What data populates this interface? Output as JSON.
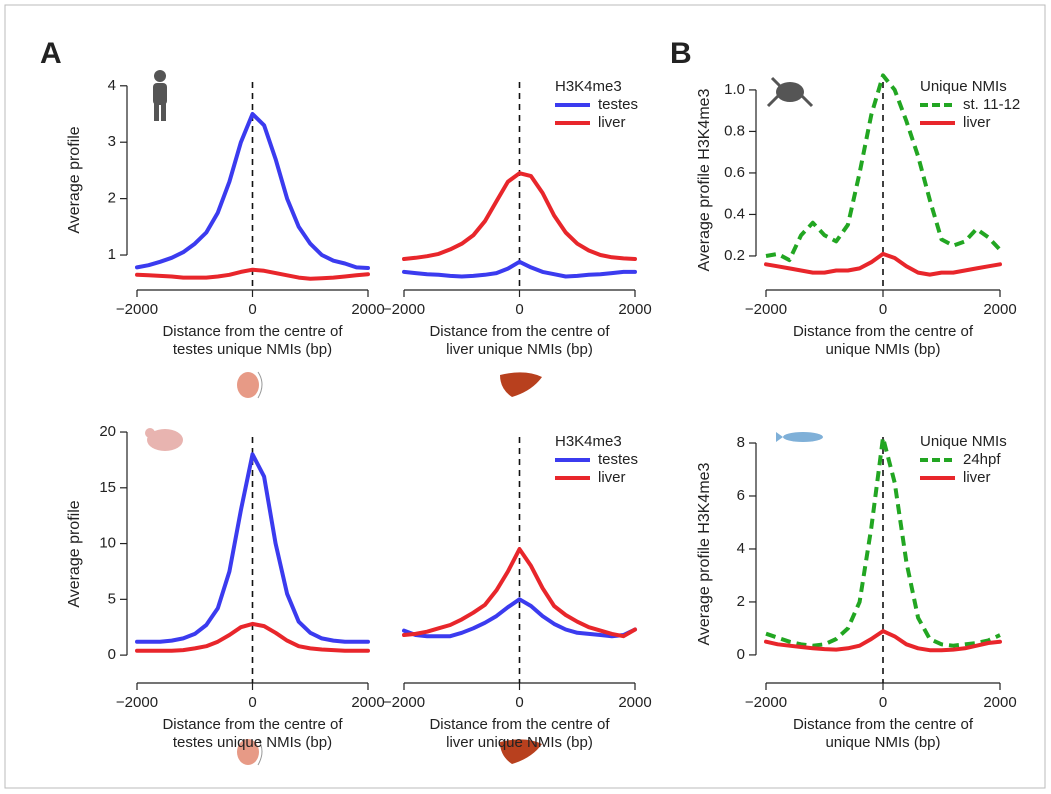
{
  "panel_labels": [
    "A",
    "B"
  ],
  "chart_data": [
    {
      "type": "line",
      "ylabel": "Average profile",
      "xlabel": [
        "Distance from the centre of",
        "testes unique NMIs (bp)"
      ],
      "x": [
        -2000,
        -1800,
        -1600,
        -1400,
        -1200,
        -1000,
        -800,
        -600,
        -400,
        -200,
        0,
        200,
        400,
        600,
        800,
        1000,
        1200,
        1400,
        1600,
        1800,
        2000
      ],
      "xlim": [
        -2000,
        2000
      ],
      "xticks": [
        {
          "value": -2000,
          "label": "−2000"
        },
        0,
        2000
      ],
      "ylim": [
        0.38,
        4.28
      ],
      "yticks": [
        1,
        2,
        3,
        4
      ],
      "vline": 0,
      "series": [
        {
          "color": "#3b3bef",
          "values": [
            0.78,
            0.82,
            0.88,
            0.95,
            1.05,
            1.2,
            1.4,
            1.75,
            2.3,
            3.0,
            3.5,
            3.3,
            2.7,
            2.0,
            1.5,
            1.2,
            1.0,
            0.9,
            0.85,
            0.78,
            0.77
          ]
        },
        {
          "color": "#e8262b",
          "values": [
            0.65,
            0.64,
            0.63,
            0.62,
            0.6,
            0.6,
            0.6,
            0.62,
            0.65,
            0.7,
            0.74,
            0.72,
            0.68,
            0.64,
            0.6,
            0.58,
            0.59,
            0.6,
            0.62,
            0.64,
            0.66
          ]
        }
      ]
    },
    {
      "type": "line",
      "xlabel": [
        "Distance from the centre of",
        "liver unique NMIs (bp)"
      ],
      "legend_title": "H3K4me3",
      "x": [
        -2000,
        -1800,
        -1600,
        -1400,
        -1200,
        -1000,
        -800,
        -600,
        -400,
        -200,
        0,
        200,
        400,
        600,
        800,
        1000,
        1200,
        1400,
        1600,
        1800,
        2000
      ],
      "xlim": [
        -2000,
        2000
      ],
      "xticks": [
        {
          "value": -2000,
          "label": "−2000"
        },
        0,
        2000
      ],
      "ylim": [
        0.38,
        4.28
      ],
      "vline": 0,
      "series": [
        {
          "name": "testes",
          "color": "#3b3bef",
          "values": [
            0.7,
            0.68,
            0.66,
            0.65,
            0.63,
            0.62,
            0.63,
            0.65,
            0.68,
            0.76,
            0.88,
            0.78,
            0.7,
            0.66,
            0.62,
            0.63,
            0.65,
            0.66,
            0.68,
            0.7,
            0.7
          ]
        },
        {
          "name": "liver",
          "color": "#e8262b",
          "values": [
            0.93,
            0.95,
            0.98,
            1.02,
            1.1,
            1.2,
            1.35,
            1.6,
            1.95,
            2.3,
            2.45,
            2.4,
            2.1,
            1.7,
            1.4,
            1.2,
            1.08,
            1.0,
            0.96,
            0.94,
            0.93
          ]
        }
      ]
    },
    {
      "type": "line",
      "ylabel": "Average profile H3K4me3",
      "xlabel": [
        "Distance from the centre of",
        "unique NMIs (bp)"
      ],
      "legend_title": "Unique NMIs",
      "x": [
        -2000,
        -1800,
        -1600,
        -1400,
        -1200,
        -1000,
        -800,
        -600,
        -400,
        -200,
        0,
        200,
        400,
        600,
        800,
        1000,
        1200,
        1400,
        1600,
        1800,
        2000
      ],
      "xlim": [
        -2000,
        2000
      ],
      "xticks": [
        {
          "value": -2000,
          "label": "−2000"
        },
        0,
        2000
      ],
      "ylim": [
        0.036,
        1.096
      ],
      "yticks": [
        0.2,
        0.4,
        0.6,
        0.8,
        {
          "value": 1,
          "label": "1.0"
        }
      ],
      "vline": 0,
      "series": [
        {
          "name": "st. 11-12",
          "color": "#22a622",
          "style": "dashed",
          "values": [
            0.2,
            0.21,
            0.18,
            0.3,
            0.36,
            0.3,
            0.27,
            0.35,
            0.6,
            0.88,
            1.07,
            1.0,
            0.85,
            0.68,
            0.47,
            0.28,
            0.25,
            0.27,
            0.33,
            0.29,
            0.23
          ]
        },
        {
          "name": "liver",
          "color": "#e8262b",
          "values": [
            0.16,
            0.15,
            0.14,
            0.13,
            0.12,
            0.12,
            0.13,
            0.13,
            0.14,
            0.17,
            0.21,
            0.19,
            0.15,
            0.12,
            0.11,
            0.12,
            0.12,
            0.13,
            0.14,
            0.15,
            0.16
          ]
        }
      ]
    },
    {
      "type": "line",
      "ylabel": "Average profile",
      "xlabel": [
        "Distance from the centre of",
        "testes unique NMIs (bp)"
      ],
      "x": [
        -2000,
        -1800,
        -1600,
        -1400,
        -1200,
        -1000,
        -800,
        -600,
        -400,
        -200,
        0,
        200,
        400,
        600,
        800,
        1000,
        1200,
        1400,
        1600,
        1800,
        2000
      ],
      "xlim": [
        -2000,
        2000
      ],
      "xticks": [
        {
          "value": -2000,
          "label": "−2000"
        },
        0,
        2000
      ],
      "ylim": [
        -2.5,
        20.63
      ],
      "yticks": [
        0,
        5,
        10,
        15,
        20
      ],
      "vline": 0,
      "series": [
        {
          "color": "#3b3bef",
          "values": [
            1.2,
            1.2,
            1.2,
            1.3,
            1.5,
            1.9,
            2.7,
            4.2,
            7.5,
            13,
            18,
            16,
            10,
            5.5,
            3.0,
            2.0,
            1.5,
            1.3,
            1.2,
            1.2,
            1.2
          ]
        },
        {
          "color": "#e8262b",
          "values": [
            0.4,
            0.4,
            0.4,
            0.4,
            0.45,
            0.6,
            0.8,
            1.2,
            1.8,
            2.5,
            2.8,
            2.6,
            2.0,
            1.3,
            0.8,
            0.6,
            0.5,
            0.45,
            0.4,
            0.4,
            0.4
          ]
        }
      ]
    },
    {
      "type": "line",
      "xlabel": [
        "Distance from the centre of",
        "liver unique NMIs (bp)"
      ],
      "legend_title": "H3K4me3",
      "x": [
        -2000,
        -1800,
        -1600,
        -1400,
        -1200,
        -1000,
        -800,
        -600,
        -400,
        -200,
        0,
        200,
        400,
        600,
        800,
        1000,
        1200,
        1400,
        1600,
        1800,
        2000
      ],
      "xlim": [
        -2000,
        2000
      ],
      "xticks": [
        {
          "value": -2000,
          "label": "−2000"
        },
        0,
        2000
      ],
      "ylim": [
        -2.5,
        20.63
      ],
      "vline": 0,
      "series": [
        {
          "name": "testes",
          "color": "#3b3bef",
          "values": [
            2.2,
            1.8,
            1.7,
            1.7,
            1.7,
            2.0,
            2.4,
            2.9,
            3.5,
            4.3,
            5.0,
            4.4,
            3.5,
            2.8,
            2.3,
            2.0,
            1.9,
            1.8,
            1.7,
            1.8,
            2.3
          ]
        },
        {
          "name": "liver",
          "color": "#e8262b",
          "values": [
            1.8,
            1.9,
            2.1,
            2.4,
            2.7,
            3.2,
            3.8,
            4.5,
            5.8,
            7.5,
            9.5,
            8.0,
            6.0,
            4.4,
            3.6,
            3.0,
            2.5,
            2.2,
            1.9,
            1.7,
            2.3
          ]
        }
      ]
    },
    {
      "type": "line",
      "ylabel": "Average profile H3K4me3",
      "xlabel": [
        "Distance from the centre of",
        "unique NMIs (bp)"
      ],
      "legend_title": "Unique NMIs",
      "x": [
        -2000,
        -1800,
        -1600,
        -1400,
        -1200,
        -1000,
        -800,
        -600,
        -400,
        -200,
        0,
        200,
        400,
        600,
        800,
        1000,
        1200,
        1400,
        1600,
        1800,
        2000
      ],
      "xlim": [
        -2000,
        2000
      ],
      "xticks": [
        {
          "value": -2000,
          "label": "−2000"
        },
        0,
        2000
      ],
      "ylim": [
        -1.06,
        8.68
      ],
      "yticks": [
        0,
        2,
        4,
        6,
        8
      ],
      "vline": 0,
      "series": [
        {
          "name": "24hpf",
          "color": "#22a622",
          "style": "dashed",
          "values": [
            0.8,
            0.65,
            0.5,
            0.4,
            0.35,
            0.4,
            0.6,
            1.0,
            2.0,
            4.8,
            8.2,
            6.5,
            3.5,
            1.4,
            0.6,
            0.4,
            0.35,
            0.4,
            0.45,
            0.55,
            0.75
          ]
        },
        {
          "name": "liver",
          "color": "#e8262b",
          "values": [
            0.5,
            0.4,
            0.35,
            0.3,
            0.25,
            0.22,
            0.2,
            0.25,
            0.35,
            0.6,
            0.9,
            0.7,
            0.4,
            0.25,
            0.18,
            0.18,
            0.2,
            0.25,
            0.35,
            0.45,
            0.5
          ]
        }
      ]
    }
  ]
}
